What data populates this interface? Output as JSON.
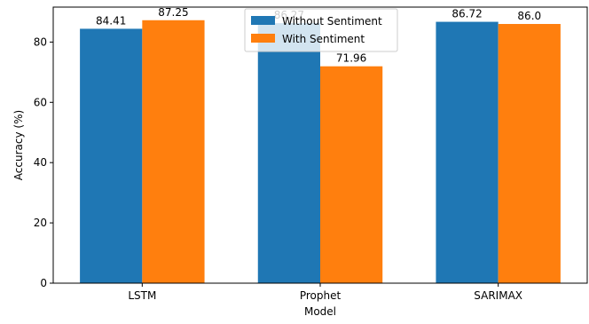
{
  "chart_data": {
    "type": "bar",
    "categories": [
      "LSTM",
      "Prophet",
      "SARIMAX"
    ],
    "series": [
      {
        "name": "Without Sentiment",
        "values": [
          84.41,
          86.27,
          86.72
        ],
        "labels": [
          "84.41",
          "86.27",
          "86.72"
        ],
        "color": "#1f77b4"
      },
      {
        "name": "With Sentiment",
        "values": [
          87.25,
          71.96,
          86.0
        ],
        "labels": [
          "87.25",
          "71.96",
          "86.0"
        ],
        "color": "#ff7f0e"
      }
    ],
    "xlabel": "Model",
    "ylabel": "Accuracy (%)",
    "ylim": [
      0,
      91.6
    ],
    "yticks": [
      0,
      20,
      40,
      60,
      80
    ],
    "ytick_labels": [
      "0",
      "20",
      "40",
      "60",
      "80"
    ],
    "grid": false,
    "legend_position": "upper-center"
  }
}
